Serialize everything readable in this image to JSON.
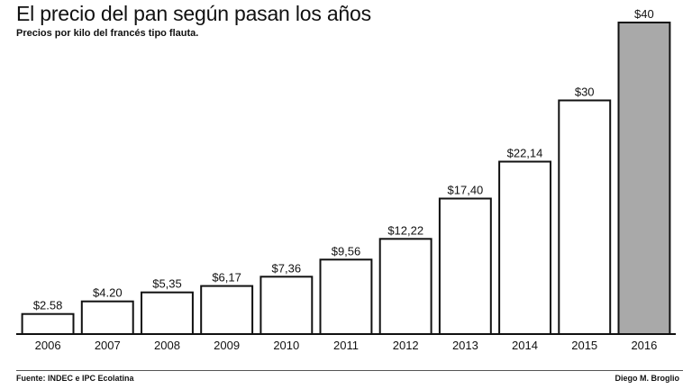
{
  "chart_data": {
    "type": "bar",
    "title": "El precio del pan según pasan los años",
    "subtitle": "Precios por kilo del francés tipo flauta.",
    "categories": [
      "2006",
      "2007",
      "2008",
      "2009",
      "2010",
      "2011",
      "2012",
      "2013",
      "2014",
      "2015",
      "2016"
    ],
    "values": [
      2.58,
      4.2,
      5.35,
      6.17,
      7.36,
      9.56,
      12.22,
      17.4,
      22.14,
      30,
      40
    ],
    "labels": [
      "$2.58",
      "$4.20",
      "$5,35",
      "$6,17",
      "$7,36",
      "$9,56",
      "$12,22",
      "$17,40",
      "$22,14",
      "$30",
      "$40"
    ],
    "highlight_index": 10,
    "ylim": [
      0,
      40
    ],
    "grid": false,
    "xlabel": "",
    "ylabel": "",
    "colors": {
      "bar_fill": "#ffffff",
      "highlight_fill": "#a9a9a9",
      "stroke": "#111111"
    }
  },
  "footer": {
    "source": "Fuente: INDEC e IPC Ecolatina",
    "credit": "Diego M. Broglio"
  }
}
